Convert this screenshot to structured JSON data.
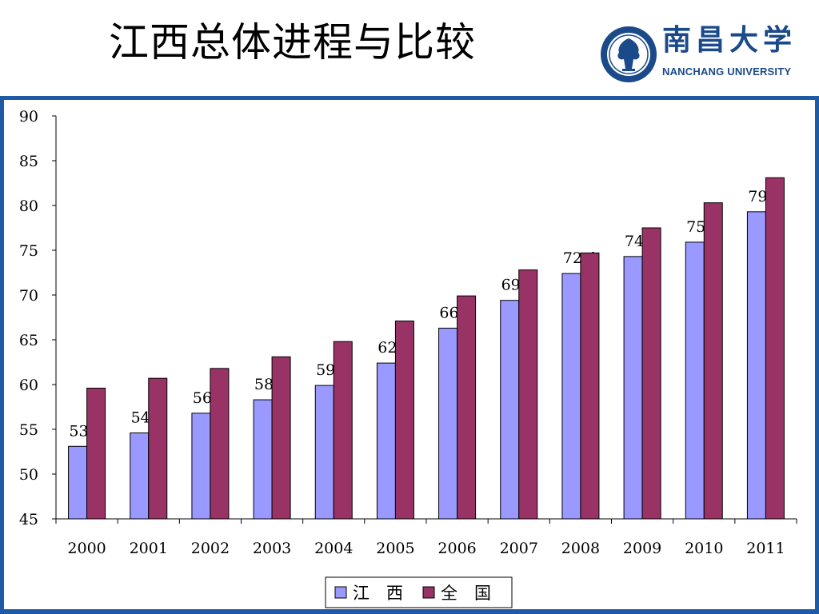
{
  "slide": {
    "title": "江西总体进程与比较",
    "logo": {
      "name_cn": "南昌大学",
      "name_en": "NANCHANG UNIVERSITY",
      "seal_text": "NANCHANG UNIVERSITY"
    }
  },
  "chart_data": {
    "type": "bar",
    "categories": [
      "2000",
      "2001",
      "2002",
      "2003",
      "2004",
      "2005",
      "2006",
      "2007",
      "2008",
      "2009",
      "2010",
      "2011"
    ],
    "series": [
      {
        "name": "江　西",
        "values": [
          53.1,
          54.6,
          56.8,
          58.3,
          59.9,
          62.4,
          66.3,
          69.4,
          72.4,
          74.3,
          75.9,
          79.3
        ],
        "color": "#9999ff",
        "data_labels": true
      },
      {
        "name": "全　国",
        "values": [
          59.6,
          60.7,
          61.8,
          63.1,
          64.8,
          67.1,
          69.9,
          72.8,
          74.7,
          77.5,
          80.3,
          83.1
        ],
        "color": "#993366",
        "data_labels": false
      }
    ],
    "ylim": [
      45,
      90
    ],
    "yticks": [
      45,
      50,
      55,
      60,
      65,
      70,
      75,
      80,
      85,
      90
    ],
    "grid": false,
    "legend": "bottom",
    "title": "",
    "xlabel": "",
    "ylabel": ""
  }
}
